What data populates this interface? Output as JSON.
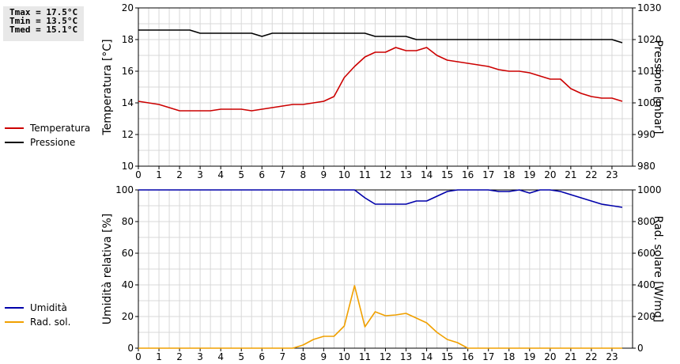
{
  "stats": {
    "tmax": "Tmax = 17.5°C",
    "tmin": "Tmin = 13.5°C",
    "tmed": "Tmed = 15.1°C"
  },
  "chart_data": [
    {
      "type": "line",
      "ylabel": "Temperatura [°C]",
      "y2label": "Pressione [mbar]",
      "ylim": [
        10,
        20
      ],
      "y2lim": [
        980,
        1030
      ],
      "yticks": [
        10,
        12,
        14,
        16,
        18,
        20
      ],
      "y2ticks": [
        980,
        990,
        1000,
        1010,
        1020,
        1030
      ],
      "xlim": [
        0,
        24
      ],
      "xticks": [
        "0",
        "1",
        "2",
        "3",
        "4",
        "5",
        "6",
        "7",
        "8",
        "9",
        "10",
        "11",
        "12",
        "13",
        "14",
        "15",
        "16",
        "17",
        "18",
        "19",
        "20",
        "21",
        "22",
        "23"
      ],
      "grid": true,
      "legend_position": "left",
      "series": [
        {
          "name": "Temperatura",
          "color": "#cc0000",
          "axis": "left",
          "x": [
            0,
            0.5,
            1,
            1.5,
            2,
            2.5,
            3,
            3.5,
            4,
            4.5,
            5,
            5.5,
            6,
            6.5,
            7,
            7.5,
            8,
            8.5,
            9,
            9.5,
            10,
            10.5,
            11,
            11.5,
            12,
            12.5,
            13,
            13.5,
            14,
            14.5,
            15,
            15.5,
            16,
            16.5,
            17,
            17.5,
            18,
            18.5,
            19,
            19.5,
            20,
            20.5,
            21,
            21.5,
            22,
            22.5,
            23,
            23.5
          ],
          "y": [
            14.1,
            14.0,
            13.9,
            13.7,
            13.5,
            13.5,
            13.5,
            13.5,
            13.6,
            13.6,
            13.6,
            13.5,
            13.6,
            13.7,
            13.8,
            13.9,
            13.9,
            14.0,
            14.1,
            14.4,
            15.6,
            16.3,
            16.9,
            17.2,
            17.2,
            17.5,
            17.3,
            17.3,
            17.5,
            17.0,
            16.7,
            16.6,
            16.5,
            16.4,
            16.3,
            16.1,
            16.0,
            16.0,
            15.9,
            15.7,
            15.5,
            15.5,
            14.9,
            14.6,
            14.4,
            14.3,
            14.3,
            14.1
          ]
        },
        {
          "name": "Pressione",
          "color": "#000000",
          "axis": "right",
          "x": [
            0,
            0.5,
            1,
            1.5,
            2,
            2.5,
            3,
            3.5,
            4,
            4.5,
            5,
            5.5,
            6,
            6.5,
            7,
            7.5,
            8,
            8.5,
            9,
            9.5,
            10,
            10.5,
            11,
            11.5,
            12,
            12.5,
            13,
            13.5,
            14,
            14.5,
            15,
            15.5,
            16,
            16.5,
            17,
            17.5,
            18,
            18.5,
            19,
            19.5,
            20,
            20.5,
            21,
            21.5,
            22,
            22.5,
            23,
            23.5
          ],
          "y": [
            1023,
            1023,
            1023,
            1023,
            1023,
            1023,
            1022,
            1022,
            1022,
            1022,
            1022,
            1022,
            1021,
            1022,
            1022,
            1022,
            1022,
            1022,
            1022,
            1022,
            1022,
            1022,
            1022,
            1021,
            1021,
            1021,
            1021,
            1020,
            1020,
            1020,
            1020,
            1020,
            1020,
            1020,
            1020,
            1020,
            1020,
            1020,
            1020,
            1020,
            1020,
            1020,
            1020,
            1020,
            1020,
            1020,
            1020,
            1019
          ]
        }
      ]
    },
    {
      "type": "line",
      "ylabel": "Umidità relativa [%]",
      "y2label": "Rad. solare [W/mq]",
      "ylim": [
        0,
        100
      ],
      "y2lim": [
        0,
        1000
      ],
      "yticks": [
        0,
        20,
        40,
        60,
        80,
        100
      ],
      "y2ticks": [
        0,
        200,
        400,
        600,
        800,
        1000
      ],
      "xlim": [
        0,
        24
      ],
      "xticks": [
        "0",
        "1",
        "2",
        "3",
        "4",
        "5",
        "6",
        "7",
        "8",
        "9",
        "10",
        "11",
        "12",
        "13",
        "14",
        "15",
        "16",
        "17",
        "18",
        "19",
        "20",
        "21",
        "22",
        "23"
      ],
      "grid": true,
      "legend_position": "left",
      "series": [
        {
          "name": "Umidità",
          "color": "#0000aa",
          "axis": "left",
          "x": [
            0,
            0.5,
            1,
            1.5,
            2,
            2.5,
            3,
            3.5,
            4,
            4.5,
            5,
            5.5,
            6,
            6.5,
            7,
            7.5,
            8,
            8.5,
            9,
            9.5,
            10,
            10.5,
            11,
            11.5,
            12,
            12.5,
            13,
            13.5,
            14,
            14.5,
            15,
            15.5,
            16,
            16.5,
            17,
            17.5,
            18,
            18.5,
            19,
            19.5,
            20,
            20.5,
            21,
            21.5,
            22,
            22.5,
            23,
            23.5
          ],
          "y": [
            100,
            100,
            100,
            100,
            100,
            100,
            100,
            100,
            100,
            100,
            100,
            100,
            100,
            100,
            100,
            100,
            100,
            100,
            100,
            100,
            100,
            100,
            95,
            91,
            91,
            91,
            91,
            93,
            93,
            96,
            99,
            100,
            100,
            100,
            100,
            99,
            99,
            100,
            98,
            100,
            100,
            99,
            97,
            95,
            93,
            91,
            90,
            89
          ]
        },
        {
          "name": "Rad. sol.",
          "color": "#f0a000",
          "axis": "right",
          "x": [
            0,
            0.5,
            1,
            1.5,
            2,
            2.5,
            3,
            3.5,
            4,
            4.5,
            5,
            5.5,
            6,
            6.5,
            7,
            7.5,
            8,
            8.5,
            9,
            9.5,
            10,
            10.5,
            11,
            11.5,
            12,
            12.5,
            13,
            13.5,
            14,
            14.5,
            15,
            15.5,
            16,
            16.5,
            17,
            17.5,
            18,
            18.5,
            19,
            19.5,
            20,
            20.5,
            21,
            21.5,
            22,
            22.5,
            23,
            23.5
          ],
          "y": [
            0,
            0,
            0,
            0,
            0,
            0,
            0,
            0,
            0,
            0,
            0,
            0,
            0,
            0,
            0,
            0,
            20,
            55,
            75,
            75,
            140,
            395,
            135,
            230,
            205,
            210,
            220,
            190,
            160,
            100,
            55,
            35,
            0,
            0,
            0,
            0,
            0,
            0,
            0,
            0,
            0,
            0,
            0,
            0,
            0,
            0,
            0,
            0
          ]
        }
      ]
    }
  ]
}
